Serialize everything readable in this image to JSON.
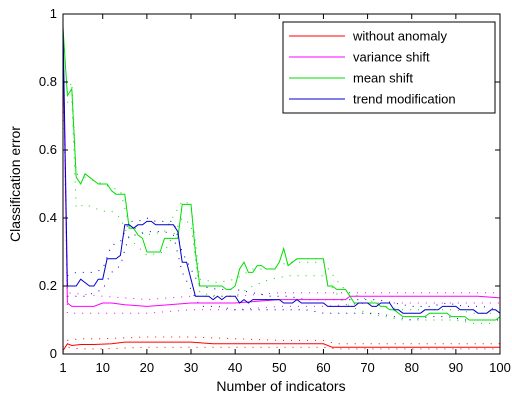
{
  "chart_data": {
    "type": "line",
    "title": "",
    "xlabel": "Number of indicators",
    "ylabel": "Classification error",
    "xlim": [
      1,
      100
    ],
    "ylim": [
      0,
      1
    ],
    "xticks": [
      1,
      10,
      20,
      30,
      40,
      50,
      60,
      70,
      80,
      90,
      100
    ],
    "yticks": [
      0,
      0.2,
      0.4,
      0.6,
      0.8,
      1
    ],
    "ytick_labels": [
      "0",
      "0.2",
      "0.4",
      "0.6",
      "0.8",
      "1"
    ],
    "grid": false,
    "legend_position": "top-right",
    "series": [
      {
        "name": "without anomaly",
        "color": "#ff0000",
        "x": [
          1,
          2,
          3,
          5,
          8,
          12,
          15,
          20,
          25,
          30,
          35,
          40,
          45,
          50,
          55,
          60,
          62,
          65,
          70,
          75,
          80,
          85,
          90,
          95,
          100
        ],
        "y": [
          0.01,
          0.03,
          0.025,
          0.028,
          0.028,
          0.03,
          0.035,
          0.035,
          0.035,
          0.035,
          0.03,
          0.03,
          0.03,
          0.03,
          0.03,
          0.03,
          0.02,
          0.02,
          0.02,
          0.02,
          0.02,
          0.02,
          0.02,
          0.02,
          0.02
        ],
        "band_x": [
          1,
          2,
          5,
          10,
          20,
          30,
          40,
          50,
          60,
          63,
          70,
          80,
          90,
          100
        ],
        "band_upper": [
          0.02,
          0.04,
          0.045,
          0.045,
          0.05,
          0.05,
          0.045,
          0.04,
          0.04,
          0.03,
          0.03,
          0.03,
          0.03,
          0.03
        ],
        "band_lower": [
          0.005,
          0.02,
          0.015,
          0.015,
          0.02,
          0.02,
          0.02,
          0.02,
          0.02,
          0.015,
          0.015,
          0.015,
          0.015,
          0.015
        ]
      },
      {
        "name": "variance shift",
        "color": "#ff00ff",
        "x": [
          1,
          2,
          3,
          5,
          8,
          10,
          12,
          15,
          20,
          25,
          30,
          35,
          40,
          45,
          50,
          55,
          60,
          65,
          66,
          70,
          75,
          80,
          85,
          90,
          95,
          100
        ],
        "y": [
          0.93,
          0.15,
          0.14,
          0.14,
          0.14,
          0.15,
          0.15,
          0.145,
          0.14,
          0.145,
          0.15,
          0.15,
          0.15,
          0.155,
          0.16,
          0.16,
          0.16,
          0.16,
          0.17,
          0.17,
          0.17,
          0.17,
          0.17,
          0.17,
          0.17,
          0.165
        ],
        "band_x": [
          1,
          2,
          10,
          20,
          30,
          40,
          50,
          60,
          70,
          80,
          90,
          100
        ],
        "band_upper": [
          0.95,
          0.18,
          0.17,
          0.16,
          0.17,
          0.17,
          0.18,
          0.18,
          0.18,
          0.18,
          0.18,
          0.18
        ],
        "band_lower": [
          0.9,
          0.12,
          0.12,
          0.12,
          0.13,
          0.13,
          0.14,
          0.14,
          0.15,
          0.15,
          0.15,
          0.15
        ]
      },
      {
        "name": "mean shift",
        "color": "#00dd00",
        "x": [
          1,
          2,
          3,
          4,
          5,
          6,
          7,
          8,
          9,
          10,
          11,
          12,
          13,
          14,
          15,
          16,
          17,
          18,
          19,
          20,
          21,
          22,
          23,
          24,
          25,
          26,
          27,
          28,
          29,
          30,
          31,
          32,
          33,
          34,
          35,
          36,
          37,
          38,
          39,
          40,
          41,
          42,
          43,
          44,
          45,
          46,
          47,
          48,
          49,
          50,
          51,
          52,
          53,
          54,
          55,
          56,
          57,
          58,
          59,
          60,
          61,
          62,
          63,
          64,
          65,
          66,
          67,
          68,
          69,
          70,
          71,
          72,
          73,
          74,
          75,
          76,
          77,
          78,
          79,
          80,
          81,
          82,
          83,
          84,
          85,
          86,
          87,
          88,
          89,
          90,
          91,
          92,
          93,
          94,
          95,
          96,
          97,
          98,
          99,
          100
        ],
        "y": [
          0.96,
          0.76,
          0.78,
          0.52,
          0.5,
          0.53,
          0.52,
          0.51,
          0.5,
          0.5,
          0.5,
          0.48,
          0.47,
          0.47,
          0.47,
          0.37,
          0.37,
          0.35,
          0.34,
          0.3,
          0.3,
          0.3,
          0.3,
          0.34,
          0.34,
          0.34,
          0.34,
          0.44,
          0.44,
          0.44,
          0.3,
          0.2,
          0.2,
          0.2,
          0.2,
          0.2,
          0.2,
          0.19,
          0.19,
          0.2,
          0.25,
          0.27,
          0.24,
          0.24,
          0.26,
          0.26,
          0.25,
          0.25,
          0.25,
          0.27,
          0.31,
          0.26,
          0.27,
          0.28,
          0.28,
          0.28,
          0.28,
          0.28,
          0.28,
          0.28,
          0.2,
          0.2,
          0.19,
          0.19,
          0.19,
          0.17,
          0.15,
          0.15,
          0.15,
          0.15,
          0.15,
          0.15,
          0.14,
          0.14,
          0.13,
          0.13,
          0.12,
          0.11,
          0.11,
          0.11,
          0.11,
          0.11,
          0.11,
          0.12,
          0.12,
          0.12,
          0.12,
          0.12,
          0.11,
          0.11,
          0.11,
          0.11,
          0.1,
          0.1,
          0.1,
          0.1,
          0.1,
          0.1,
          0.1,
          0.11
        ],
        "band_x": [
          2,
          3,
          4,
          6,
          8,
          10,
          12,
          14,
          16,
          20,
          24,
          28,
          30,
          32,
          36,
          40,
          44,
          48,
          52,
          56,
          60,
          64,
          66,
          70,
          74,
          78,
          82,
          86,
          90,
          94,
          98
        ],
        "band_upper": [
          0.77,
          0.8,
          0.53,
          0.52,
          0.51,
          0.5,
          0.49,
          0.48,
          0.38,
          0.35,
          0.36,
          0.45,
          0.44,
          0.22,
          0.21,
          0.22,
          0.25,
          0.25,
          0.27,
          0.27,
          0.27,
          0.2,
          0.18,
          0.16,
          0.14,
          0.13,
          0.13,
          0.13,
          0.13,
          0.12,
          0.12
        ],
        "band_lower": [
          0.74,
          0.75,
          0.43,
          0.44,
          0.43,
          0.42,
          0.42,
          0.4,
          0.34,
          0.29,
          0.3,
          0.4,
          0.38,
          0.18,
          0.17,
          0.17,
          0.2,
          0.22,
          0.23,
          0.23,
          0.23,
          0.16,
          0.14,
          0.12,
          0.11,
          0.1,
          0.1,
          0.1,
          0.1,
          0.09,
          0.09
        ]
      },
      {
        "name": "trend modification",
        "color": "#0000cc",
        "x": [
          1,
          2,
          3,
          4,
          5,
          6,
          7,
          8,
          9,
          10,
          11,
          12,
          13,
          14,
          15,
          16,
          17,
          18,
          19,
          20,
          21,
          22,
          23,
          24,
          25,
          26,
          27,
          28,
          29,
          30,
          31,
          32,
          33,
          34,
          35,
          36,
          37,
          38,
          39,
          40,
          41,
          42,
          43,
          44,
          45,
          46,
          47,
          48,
          49,
          50,
          51,
          52,
          53,
          54,
          55,
          56,
          57,
          58,
          59,
          60,
          61,
          62,
          63,
          64,
          65,
          66,
          67,
          68,
          69,
          70,
          71,
          72,
          73,
          74,
          75,
          76,
          77,
          78,
          79,
          80,
          81,
          82,
          83,
          84,
          85,
          86,
          87,
          88,
          89,
          90,
          91,
          92,
          93,
          94,
          95,
          96,
          97,
          98,
          99,
          100
        ],
        "y": [
          0.97,
          0.2,
          0.2,
          0.2,
          0.22,
          0.21,
          0.2,
          0.2,
          0.22,
          0.22,
          0.28,
          0.28,
          0.28,
          0.29,
          0.38,
          0.38,
          0.37,
          0.38,
          0.38,
          0.39,
          0.39,
          0.38,
          0.38,
          0.38,
          0.38,
          0.38,
          0.36,
          0.27,
          0.27,
          0.22,
          0.17,
          0.17,
          0.17,
          0.17,
          0.16,
          0.17,
          0.16,
          0.17,
          0.17,
          0.17,
          0.15,
          0.16,
          0.15,
          0.16,
          0.16,
          0.16,
          0.16,
          0.16,
          0.16,
          0.16,
          0.15,
          0.15,
          0.15,
          0.16,
          0.15,
          0.15,
          0.15,
          0.15,
          0.15,
          0.15,
          0.14,
          0.14,
          0.14,
          0.14,
          0.14,
          0.14,
          0.14,
          0.15,
          0.15,
          0.15,
          0.14,
          0.14,
          0.15,
          0.15,
          0.15,
          0.13,
          0.13,
          0.12,
          0.12,
          0.12,
          0.12,
          0.12,
          0.13,
          0.13,
          0.13,
          0.13,
          0.14,
          0.14,
          0.14,
          0.14,
          0.13,
          0.13,
          0.13,
          0.13,
          0.12,
          0.12,
          0.12,
          0.13,
          0.13,
          0.12
        ],
        "band_x": [
          2,
          4,
          6,
          8,
          10,
          12,
          14,
          16,
          18,
          20,
          22,
          24,
          26,
          28,
          30,
          32,
          36,
          40,
          44,
          48,
          52,
          56,
          60,
          64,
          68,
          72,
          76,
          80,
          84,
          88,
          92,
          96,
          100
        ],
        "band_upper": [
          0.23,
          0.24,
          0.24,
          0.24,
          0.25,
          0.32,
          0.33,
          0.39,
          0.39,
          0.4,
          0.39,
          0.39,
          0.39,
          0.3,
          0.25,
          0.2,
          0.19,
          0.19,
          0.18,
          0.17,
          0.17,
          0.16,
          0.16,
          0.16,
          0.16,
          0.16,
          0.15,
          0.14,
          0.14,
          0.15,
          0.14,
          0.14,
          0.13
        ],
        "band_lower": [
          0.17,
          0.17,
          0.17,
          0.18,
          0.19,
          0.24,
          0.26,
          0.35,
          0.35,
          0.36,
          0.36,
          0.36,
          0.35,
          0.24,
          0.19,
          0.14,
          0.14,
          0.13,
          0.13,
          0.13,
          0.13,
          0.13,
          0.12,
          0.12,
          0.12,
          0.12,
          0.11,
          0.1,
          0.11,
          0.11,
          0.1,
          0.1,
          0.1
        ]
      }
    ]
  }
}
